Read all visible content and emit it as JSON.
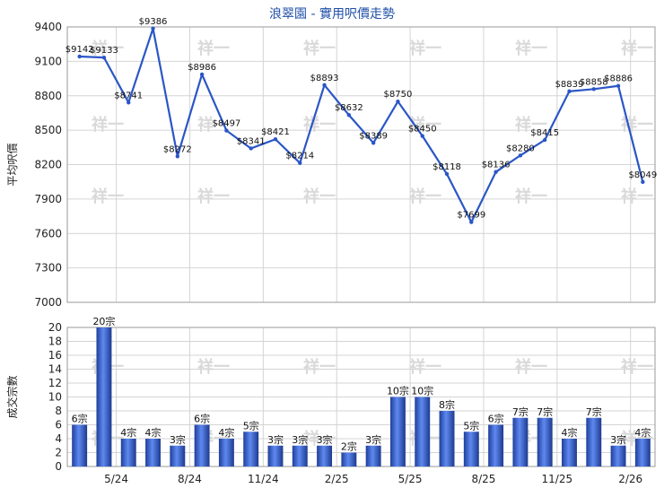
{
  "title": "浪翠園 - 實用呎價走勢",
  "chart_data": [
    {
      "type": "line",
      "ylabel": "平均呎價",
      "ylim": [
        7000,
        9400
      ],
      "yticks": [
        7000,
        7300,
        7600,
        7900,
        8200,
        8500,
        8800,
        9100,
        9400
      ],
      "grid": true,
      "color": "#2a56c6",
      "values": [
        9142,
        9133,
        8741,
        9386,
        8272,
        8986,
        8497,
        8341,
        8421,
        8214,
        8893,
        8632,
        8389,
        8750,
        8450,
        8118,
        7699,
        8136,
        8280,
        8415,
        8839,
        8858,
        8886,
        8049
      ],
      "labels": [
        "$9142",
        "$9133",
        "$8741",
        "$9386",
        "$8272",
        "$8986",
        "$8497",
        "$8341",
        "$8421",
        "$8214",
        "$8893",
        "$8632",
        "$8389",
        "$8750",
        "$8450",
        "$8118",
        "$7699",
        "$8136",
        "$8280",
        "$8415",
        "$8839",
        "$8858",
        "$8886",
        "$8049"
      ]
    },
    {
      "type": "bar",
      "ylabel": "成交宗數",
      "ylim": [
        0,
        20
      ],
      "yticks": [
        0,
        2,
        4,
        6,
        8,
        10,
        12,
        14,
        16,
        18,
        20
      ],
      "grid": true,
      "color": "#3f6fd6",
      "values": [
        6,
        20,
        4,
        4,
        3,
        6,
        4,
        5,
        3,
        3,
        3,
        2,
        3,
        10,
        10,
        8,
        5,
        6,
        7,
        7,
        4,
        7,
        3,
        4
      ],
      "labels": [
        "6宗",
        "20宗",
        "4宗",
        "4宗",
        "3宗",
        "6宗",
        "4宗",
        "5宗",
        "3宗",
        "3宗",
        "3宗",
        "2宗",
        "3宗",
        "10宗",
        "10宗",
        "8宗",
        "5宗",
        "6宗",
        "7宗",
        "7宗",
        "4宗",
        "7宗",
        "3宗",
        "4宗"
      ]
    }
  ],
  "x_tick_labels": [
    "5/24",
    "8/24",
    "11/24",
    "2/25",
    "5/25",
    "8/25",
    "11/25",
    "2/26"
  ],
  "watermark": "祥一"
}
